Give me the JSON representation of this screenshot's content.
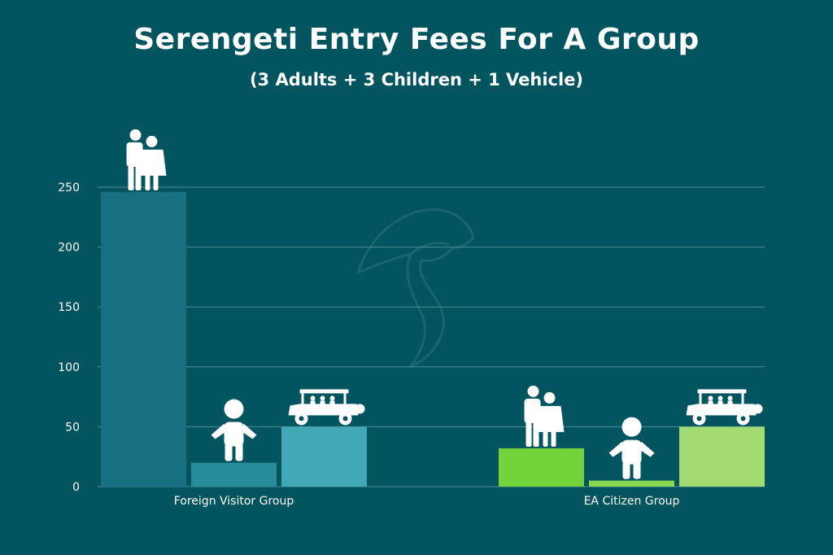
{
  "chart_data": {
    "type": "bar",
    "title": "Serengeti Entry Fees For A Group",
    "subtitle": "(3 Adults + 3 Children + 1 Vehicle)",
    "xlabel": "",
    "ylabel": "",
    "ylim": [
      0,
      250
    ],
    "yticks": [
      0,
      50,
      100,
      150,
      200,
      250
    ],
    "grid": true,
    "groups": [
      {
        "label": "Foreign Visitor Group",
        "bars": [
          {
            "name": "adults",
            "value": 246,
            "color": "#17707f",
            "icon": "adult-couple-icon"
          },
          {
            "name": "children",
            "value": 20,
            "color": "#268c99",
            "icon": "child-icon"
          },
          {
            "name": "vehicle",
            "value": 50,
            "color": "#43a8b5",
            "icon": "safari-vehicle-icon"
          }
        ]
      },
      {
        "label": "EA Citizen Group",
        "bars": [
          {
            "name": "adults",
            "value": 32,
            "color": "#72d33b",
            "icon": "adult-couple-icon"
          },
          {
            "name": "children",
            "value": 5,
            "color": "#88d852",
            "icon": "child-icon"
          },
          {
            "name": "vehicle",
            "value": 50,
            "color": "#a1db71",
            "icon": "safari-vehicle-icon"
          }
        ]
      }
    ],
    "watermark_icon": "cheetah-logo-icon"
  }
}
